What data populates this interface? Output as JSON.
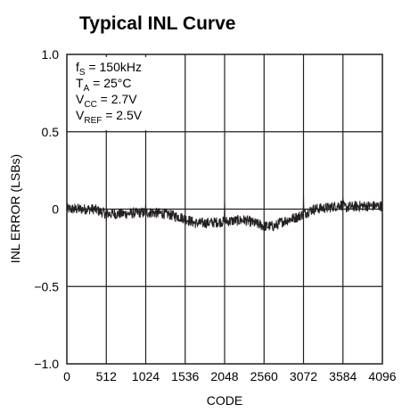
{
  "chart_data": {
    "type": "line",
    "title": "Typical INL Curve",
    "xlabel": "CODE",
    "ylabel": "INL ERROR (LSBs)",
    "xlim": [
      0,
      4096
    ],
    "ylim": [
      -1.0,
      1.0
    ],
    "x_ticks": [
      "0",
      "512",
      "1024",
      "1536",
      "2048",
      "2560",
      "3072",
      "3584",
      "4096"
    ],
    "y_ticks": [
      "1.0",
      "0.5",
      "0",
      "−0.5",
      "−1.0"
    ],
    "grid": true,
    "conditions": [
      {
        "main": "f",
        "sub": "S",
        "rest": " = 150kHz"
      },
      {
        "main": "T",
        "sub": "A",
        "rest": " = 25°C"
      },
      {
        "main": "V",
        "sub": "CC",
        "rest": " = 2.7V"
      },
      {
        "main": "V",
        "sub": "REF",
        "rest": " = 2.5V"
      }
    ],
    "series": [
      {
        "x": [
          0,
          256,
          350,
          512,
          768,
          1024,
          1280,
          1536,
          1660,
          1800,
          2048,
          2304,
          2560,
          2700,
          2800,
          3000,
          3072,
          3200,
          3400,
          3584,
          3600,
          3800,
          4096
        ],
        "y": [
          0.0,
          0.0,
          0.0,
          -0.03,
          -0.03,
          -0.02,
          -0.03,
          -0.06,
          -0.09,
          -0.09,
          -0.08,
          -0.07,
          -0.11,
          -0.11,
          -0.08,
          -0.05,
          -0.03,
          0.0,
          0.01,
          0.03,
          0.01,
          0.02,
          0.02
        ]
      }
    ],
    "spikes": [
      {
        "x": 512,
        "y": -0.07
      },
      {
        "x": 1024,
        "y": 0.04
      },
      {
        "x": 1536,
        "y": -0.1
      },
      {
        "x": 2048,
        "y": 0.05
      },
      {
        "x": 2560,
        "y": -0.14
      },
      {
        "x": 3072,
        "y": 0.09
      },
      {
        "x": 3584,
        "y": 0.07
      }
    ],
    "colors": {
      "line": "#231f20",
      "grid": "#231f20",
      "text": "#231f20"
    }
  }
}
